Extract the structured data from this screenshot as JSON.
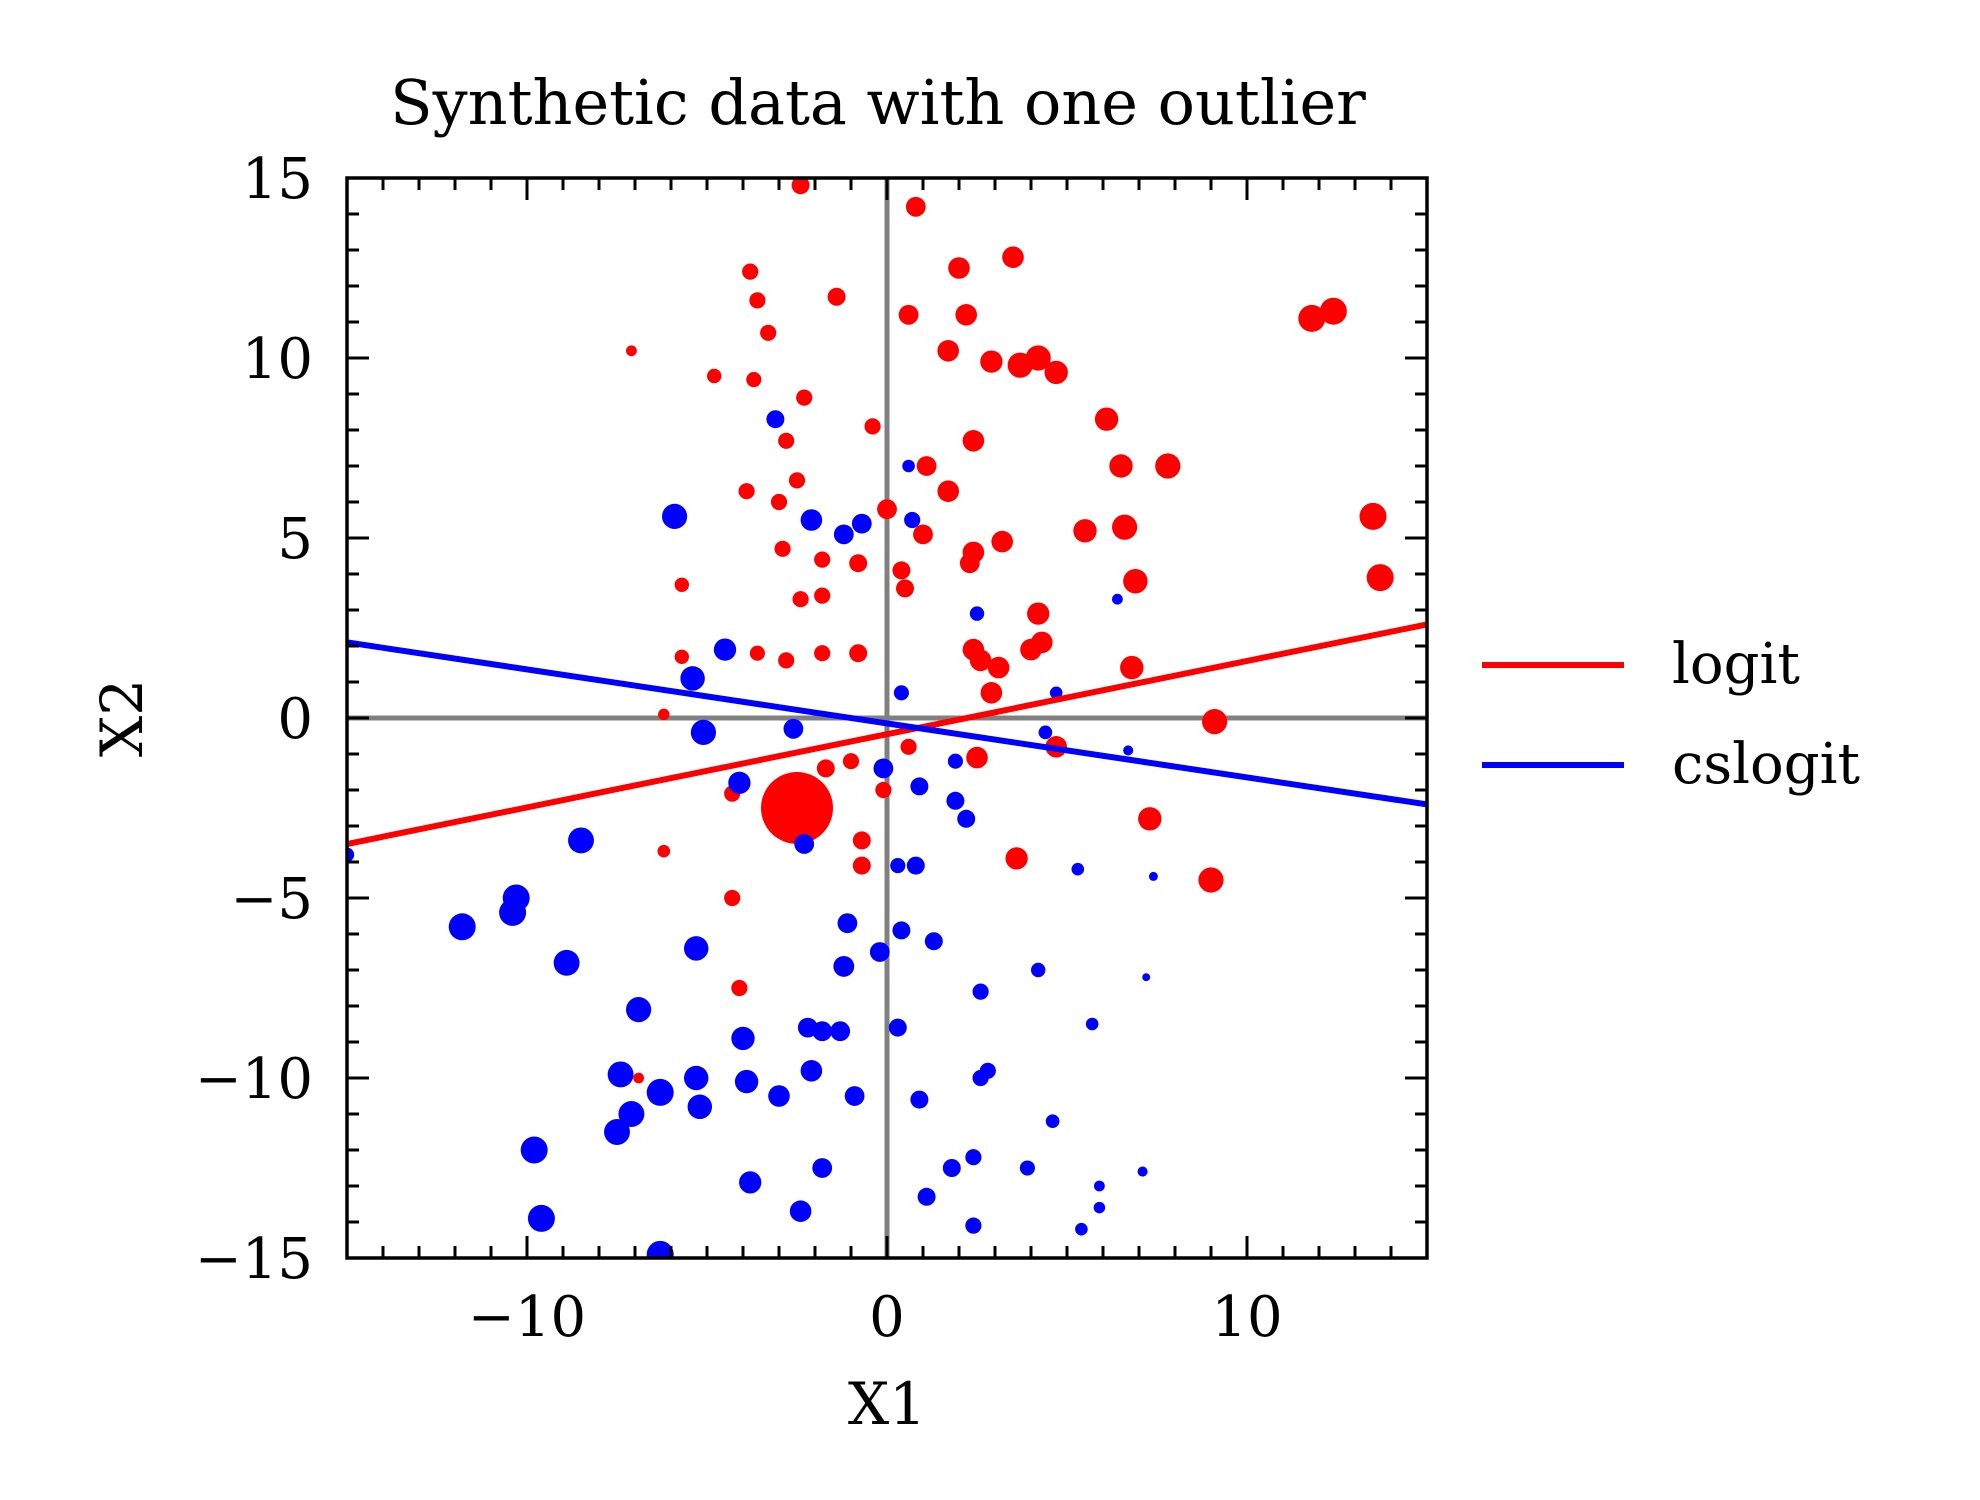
{
  "chart_data": {
    "type": "scatter",
    "title": "Synthetic data with one outlier",
    "xlabel": "X1",
    "ylabel": "X2",
    "xlim": [
      -15,
      15
    ],
    "ylim": [
      -15,
      15
    ],
    "xticks": [
      -10,
      0,
      10
    ],
    "yticks": [
      -15,
      -10,
      -5,
      0,
      5,
      10,
      15
    ],
    "xtick_labels": [
      "−10",
      "0",
      "10"
    ],
    "ytick_labels": [
      "−15",
      "−10",
      "−5",
      "0",
      "5",
      "10",
      "15"
    ],
    "grid": false,
    "reference_lines": {
      "x": 0,
      "y": 0,
      "color": "#808080"
    },
    "legend": {
      "placement": "outside-right",
      "entries": [
        {
          "label": "logit",
          "color": "#ff0000"
        },
        {
          "label": "cslogit",
          "color": "#0000ff"
        }
      ]
    },
    "lines": [
      {
        "name": "logit",
        "color": "#ff0000",
        "x": [
          -15,
          15
        ],
        "y": [
          -3.5,
          2.6
        ]
      },
      {
        "name": "cslogit",
        "color": "#0000ff",
        "x": [
          -15,
          15
        ],
        "y": [
          2.1,
          -2.4
        ]
      }
    ],
    "scatter_series": [
      {
        "color": "#ff0000",
        "points": [
          [
            -2.4,
            14.8,
            0.5
          ],
          [
            0.8,
            14.2,
            0.55
          ],
          [
            -3.8,
            12.4,
            0.45
          ],
          [
            -3.6,
            11.6,
            0.45
          ],
          [
            -1.4,
            11.7,
            0.5
          ],
          [
            2.0,
            12.5,
            0.6
          ],
          [
            3.5,
            12.8,
            0.6
          ],
          [
            0.6,
            11.2,
            0.55
          ],
          [
            2.2,
            11.2,
            0.6
          ],
          [
            -3.3,
            10.7,
            0.45
          ],
          [
            -7.1,
            10.2,
            0.3
          ],
          [
            -4.8,
            9.5,
            0.4
          ],
          [
            -3.7,
            9.4,
            0.42
          ],
          [
            -2.3,
            8.9,
            0.45
          ],
          [
            1.7,
            10.2,
            0.6
          ],
          [
            2.9,
            9.9,
            0.62
          ],
          [
            3.7,
            9.8,
            0.7
          ],
          [
            4.2,
            10.0,
            0.7
          ],
          [
            4.7,
            9.6,
            0.65
          ],
          [
            11.8,
            11.1,
            0.75
          ],
          [
            12.4,
            11.3,
            0.75
          ],
          [
            -0.4,
            8.1,
            0.45
          ],
          [
            -2.8,
            7.7,
            0.45
          ],
          [
            2.4,
            7.7,
            0.6
          ],
          [
            6.1,
            8.3,
            0.65
          ],
          [
            1.1,
            7.0,
            0.55
          ],
          [
            6.5,
            7.0,
            0.65
          ],
          [
            7.8,
            7.0,
            0.7
          ],
          [
            -2.5,
            6.6,
            0.45
          ],
          [
            -3.9,
            6.3,
            0.45
          ],
          [
            -3.0,
            6.0,
            0.45
          ],
          [
            1.7,
            6.3,
            0.6
          ],
          [
            0.0,
            5.8,
            0.55
          ],
          [
            1.0,
            5.1,
            0.55
          ],
          [
            5.5,
            5.2,
            0.65
          ],
          [
            6.6,
            5.3,
            0.7
          ],
          [
            13.5,
            5.6,
            0.75
          ],
          [
            -2.9,
            4.7,
            0.45
          ],
          [
            -1.8,
            4.4,
            0.45
          ],
          [
            -0.8,
            4.3,
            0.5
          ],
          [
            0.4,
            4.1,
            0.5
          ],
          [
            2.3,
            4.3,
            0.55
          ],
          [
            2.4,
            4.6,
            0.6
          ],
          [
            3.2,
            4.9,
            0.6
          ],
          [
            6.9,
            3.8,
            0.68
          ],
          [
            13.7,
            3.9,
            0.75
          ],
          [
            -5.7,
            3.7,
            0.4
          ],
          [
            0.5,
            3.6,
            0.5
          ],
          [
            -2.4,
            3.3,
            0.45
          ],
          [
            -1.8,
            3.4,
            0.45
          ],
          [
            4.2,
            2.9,
            0.62
          ],
          [
            4.3,
            2.1,
            0.6
          ],
          [
            4.0,
            1.9,
            0.6
          ],
          [
            2.4,
            1.9,
            0.6
          ],
          [
            2.6,
            1.6,
            0.6
          ],
          [
            -5.7,
            1.7,
            0.4
          ],
          [
            -3.6,
            1.8,
            0.42
          ],
          [
            -2.8,
            1.6,
            0.45
          ],
          [
            -1.8,
            1.8,
            0.45
          ],
          [
            -0.8,
            1.8,
            0.5
          ],
          [
            3.1,
            1.4,
            0.6
          ],
          [
            6.8,
            1.4,
            0.65
          ],
          [
            2.9,
            0.7,
            0.6
          ],
          [
            -6.2,
            0.1,
            0.32
          ],
          [
            9.1,
            -0.1,
            0.7
          ],
          [
            0.6,
            -0.8,
            0.45
          ],
          [
            -1.0,
            -1.2,
            0.45
          ],
          [
            -1.7,
            -1.4,
            0.5
          ],
          [
            2.5,
            -1.1,
            0.6
          ],
          [
            4.7,
            -0.8,
            0.6
          ],
          [
            -4.3,
            -2.1,
            0.45
          ],
          [
            -1.9,
            -2.1,
            0.45
          ],
          [
            -0.1,
            -2.0,
            0.45
          ],
          [
            -2.5,
            -2.5,
            2.0
          ],
          [
            7.3,
            -2.8,
            0.65
          ],
          [
            -0.7,
            -3.4,
            0.5
          ],
          [
            -0.7,
            -4.1,
            0.5
          ],
          [
            -6.2,
            -3.7,
            0.35
          ],
          [
            3.6,
            -3.9,
            0.62
          ],
          [
            9.0,
            -4.5,
            0.7
          ],
          [
            -4.3,
            -5.0,
            0.45
          ],
          [
            -4.1,
            -7.5,
            0.45
          ],
          [
            -6.9,
            -10.0,
            0.3
          ]
        ]
      },
      {
        "color": "#0000ff",
        "points": [
          [
            -3.1,
            8.3,
            0.5
          ],
          [
            0.6,
            7.0,
            0.35
          ],
          [
            -5.9,
            5.6,
            0.7
          ],
          [
            -2.1,
            5.5,
            0.6
          ],
          [
            -1.2,
            5.1,
            0.55
          ],
          [
            -0.7,
            5.4,
            0.55
          ],
          [
            0.7,
            5.5,
            0.45
          ],
          [
            6.4,
            3.3,
            0.3
          ],
          [
            2.5,
            2.9,
            0.4
          ],
          [
            -4.5,
            1.9,
            0.62
          ],
          [
            -5.4,
            1.1,
            0.68
          ],
          [
            0.4,
            0.7,
            0.42
          ],
          [
            4.7,
            0.7,
            0.35
          ],
          [
            -2.6,
            -0.3,
            0.55
          ],
          [
            -5.1,
            -0.4,
            0.7
          ],
          [
            4.4,
            -0.4,
            0.38
          ],
          [
            6.7,
            -0.9,
            0.28
          ],
          [
            -4.1,
            -1.8,
            0.62
          ],
          [
            -0.1,
            -1.4,
            0.55
          ],
          [
            1.9,
            -1.2,
            0.42
          ],
          [
            0.9,
            -1.9,
            0.5
          ],
          [
            1.9,
            -2.3,
            0.5
          ],
          [
            2.2,
            -2.8,
            0.5
          ],
          [
            -8.5,
            -3.4,
            0.72
          ],
          [
            -2.3,
            -3.5,
            0.55
          ],
          [
            0.3,
            -4.1,
            0.42
          ],
          [
            0.8,
            -4.1,
            0.5
          ],
          [
            5.3,
            -4.2,
            0.35
          ],
          [
            7.4,
            -4.4,
            0.25
          ],
          [
            -10.3,
            -5.0,
            0.75
          ],
          [
            -11.8,
            -5.8,
            0.75
          ],
          [
            -10.4,
            -5.4,
            0.75
          ],
          [
            -1.1,
            -5.7,
            0.55
          ],
          [
            0.4,
            -5.9,
            0.5
          ],
          [
            1.3,
            -6.2,
            0.5
          ],
          [
            -5.3,
            -6.4,
            0.68
          ],
          [
            -0.2,
            -6.5,
            0.55
          ],
          [
            -8.9,
            -6.8,
            0.72
          ],
          [
            -1.2,
            -6.9,
            0.58
          ],
          [
            4.2,
            -7.0,
            0.4
          ],
          [
            7.2,
            -7.2,
            0.22
          ],
          [
            2.6,
            -7.6,
            0.45
          ],
          [
            -6.9,
            -8.1,
            0.7
          ],
          [
            -4.0,
            -8.9,
            0.65
          ],
          [
            -2.2,
            -8.6,
            0.55
          ],
          [
            -1.8,
            -8.7,
            0.55
          ],
          [
            -1.3,
            -8.7,
            0.55
          ],
          [
            0.3,
            -8.6,
            0.5
          ],
          [
            5.7,
            -8.5,
            0.35
          ],
          [
            -7.4,
            -9.9,
            0.72
          ],
          [
            -5.3,
            -10.0,
            0.68
          ],
          [
            -3.9,
            -10.1,
            0.65
          ],
          [
            -2.1,
            -9.8,
            0.6
          ],
          [
            2.6,
            -10.0,
            0.45
          ],
          [
            2.8,
            -9.8,
            0.45
          ],
          [
            -6.3,
            -10.4,
            0.75
          ],
          [
            -3.0,
            -10.5,
            0.6
          ],
          [
            -0.9,
            -10.5,
            0.55
          ],
          [
            0.9,
            -10.6,
            0.5
          ],
          [
            -5.2,
            -10.8,
            0.68
          ],
          [
            -7.1,
            -11.0,
            0.72
          ],
          [
            -7.5,
            -11.5,
            0.72
          ],
          [
            4.6,
            -11.2,
            0.38
          ],
          [
            -9.8,
            -12.0,
            0.75
          ],
          [
            -1.8,
            -12.5,
            0.55
          ],
          [
            1.8,
            -12.5,
            0.5
          ],
          [
            2.4,
            -12.2,
            0.45
          ],
          [
            3.9,
            -12.5,
            0.42
          ],
          [
            7.1,
            -12.6,
            0.28
          ],
          [
            -3.8,
            -12.9,
            0.62
          ],
          [
            5.9,
            -13.0,
            0.3
          ],
          [
            1.1,
            -13.3,
            0.5
          ],
          [
            5.9,
            -13.6,
            0.32
          ],
          [
            -2.4,
            -13.7,
            0.6
          ],
          [
            -9.6,
            -13.9,
            0.75
          ],
          [
            2.4,
            -14.1,
            0.45
          ],
          [
            5.4,
            -14.2,
            0.35
          ],
          [
            -6.3,
            -14.9,
            0.75
          ],
          [
            -15.0,
            -3.8,
            0.4
          ]
        ]
      }
    ]
  }
}
